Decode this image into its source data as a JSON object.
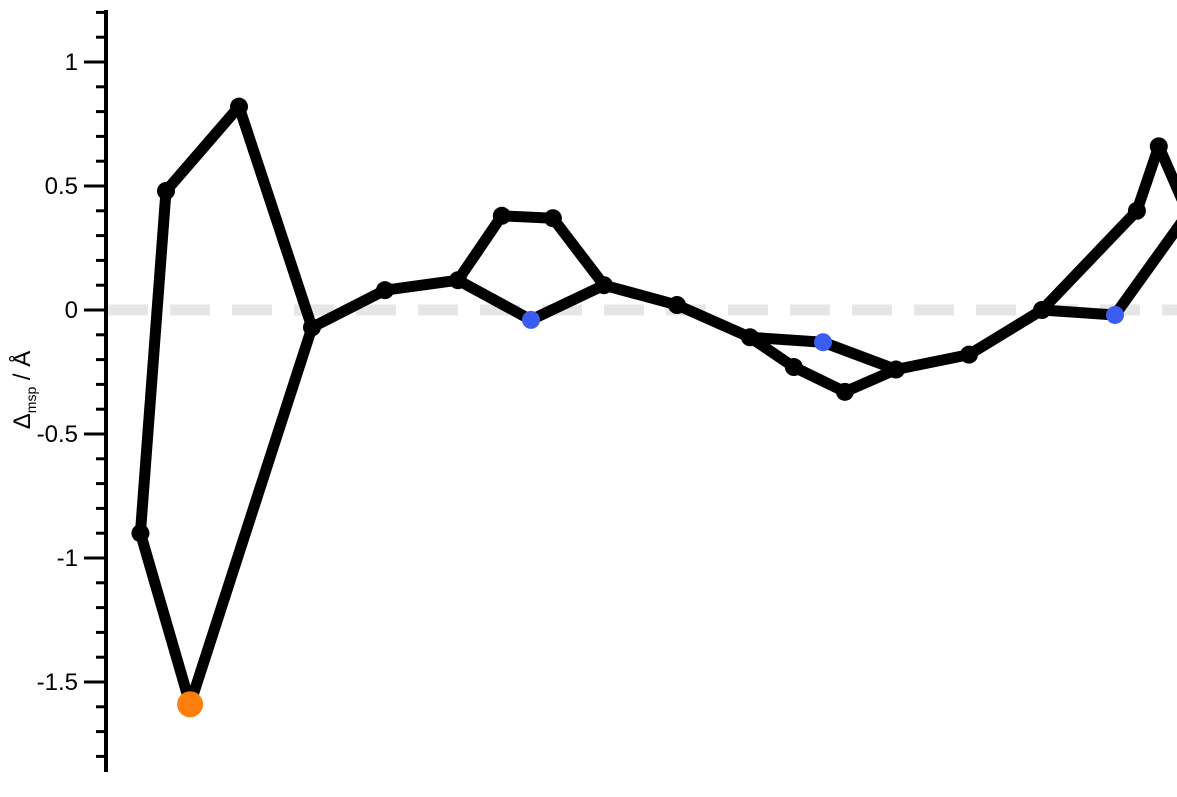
{
  "chart_data": {
    "type": "line",
    "title": "",
    "xlabel": "",
    "ylabel": {
      "symbol": "Δ",
      "subscript": "msp",
      "unit": " / Å"
    },
    "ylim": [
      -1.85,
      1.2
    ],
    "yticks": [
      {
        "value": 1,
        "label": "1"
      },
      {
        "value": 0.5,
        "label": "0.5"
      },
      {
        "value": 0,
        "label": "0"
      },
      {
        "value": -0.5,
        "label": "-0.5"
      },
      {
        "value": -1,
        "label": "-1"
      },
      {
        "value": -1.5,
        "label": "-1.5"
      }
    ],
    "reference_line": {
      "y": 0,
      "style": "dashed",
      "color": "#e6e6e6"
    },
    "series_color": "#000000",
    "highlight_colors": {
      "blue": "#3a5cf0",
      "orange": "#ff7f0e"
    },
    "points": [
      {
        "x": 1,
        "y": 0.48
      },
      {
        "x": 2,
        "y": 0.82
      },
      {
        "x": 3,
        "y": -0.07
      },
      {
        "x": 4,
        "y": 0.08
      },
      {
        "x": 5,
        "y": 0.12
      },
      {
        "x": 6,
        "y": -0.04,
        "marker": "blue"
      },
      {
        "x": 7,
        "y": 0.1
      },
      {
        "x": 8,
        "y": 0.02
      },
      {
        "x": 9,
        "y": -0.11
      },
      {
        "x": 10,
        "y": -0.13,
        "marker": "blue"
      },
      {
        "x": 11,
        "y": -0.24
      },
      {
        "x": 12,
        "y": -0.18
      },
      {
        "x": 13,
        "y": 0.0
      },
      {
        "x": 14,
        "y": -0.02,
        "marker": "blue"
      }
    ],
    "loop_points": [
      {
        "x": 0.65,
        "y": -0.9
      },
      {
        "x": 1.33,
        "y": -1.59,
        "marker": "orange"
      },
      {
        "x": 5.6,
        "y": 0.38
      },
      {
        "x": 6.3,
        "y": 0.37
      },
      {
        "x": 9.6,
        "y": -0.23
      },
      {
        "x": 10.3,
        "y": -0.33
      },
      {
        "x": 14.3,
        "y": 0.4
      },
      {
        "x": 14.6,
        "y": 0.66
      },
      {
        "x": 15.0,
        "y": 0.39
      }
    ]
  }
}
